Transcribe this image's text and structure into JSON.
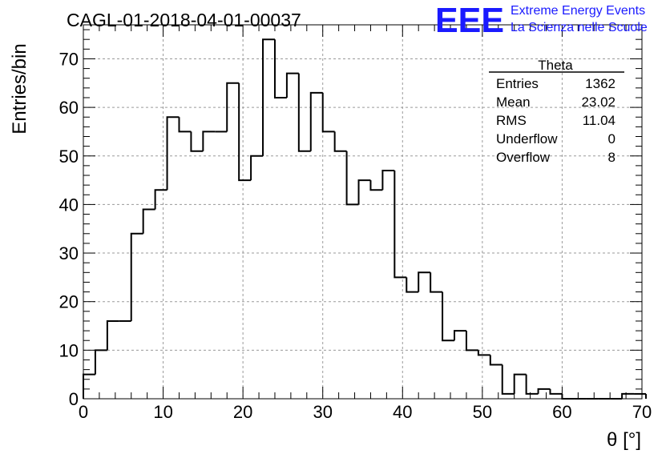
{
  "chart_data": {
    "type": "bar",
    "title": "CAGL-01-2018-04-01-00037",
    "xlabel": "θ [°]",
    "ylabel": "Entries/bin",
    "xlim": [
      0,
      70
    ],
    "ylim": [
      0,
      77
    ],
    "xticks": [
      "0",
      "10",
      "20",
      "30",
      "40",
      "50",
      "60",
      "70"
    ],
    "yticks": [
      "0",
      "10",
      "20",
      "30",
      "40",
      "50",
      "60",
      "70"
    ],
    "grid": true,
    "bin_width": 1.5,
    "bin_edges_start": 0,
    "values": [
      5,
      10,
      16,
      16,
      34,
      39,
      43,
      58,
      55,
      51,
      55,
      55,
      65,
      45,
      50,
      74,
      62,
      67,
      51,
      63,
      55,
      51,
      40,
      45,
      43,
      47,
      25,
      22,
      26,
      22,
      12,
      14,
      10,
      9,
      7,
      1,
      5,
      1,
      2,
      1,
      0,
      0,
      0,
      0,
      0,
      1,
      1
    ]
  },
  "stats_box": {
    "title": "Theta",
    "rows": [
      {
        "label": "Entries",
        "value": "1362"
      },
      {
        "label": "Mean",
        "value": "23.02"
      },
      {
        "label": "RMS",
        "value": "11.04"
      },
      {
        "label": "Underflow",
        "value": "0"
      },
      {
        "label": "Overflow",
        "value": "8"
      }
    ]
  },
  "logo": {
    "mark": "EEE",
    "line1": "Extreme Energy Events",
    "line2": "La Scienza nelle Scuole",
    "color": "#1a1aff"
  }
}
